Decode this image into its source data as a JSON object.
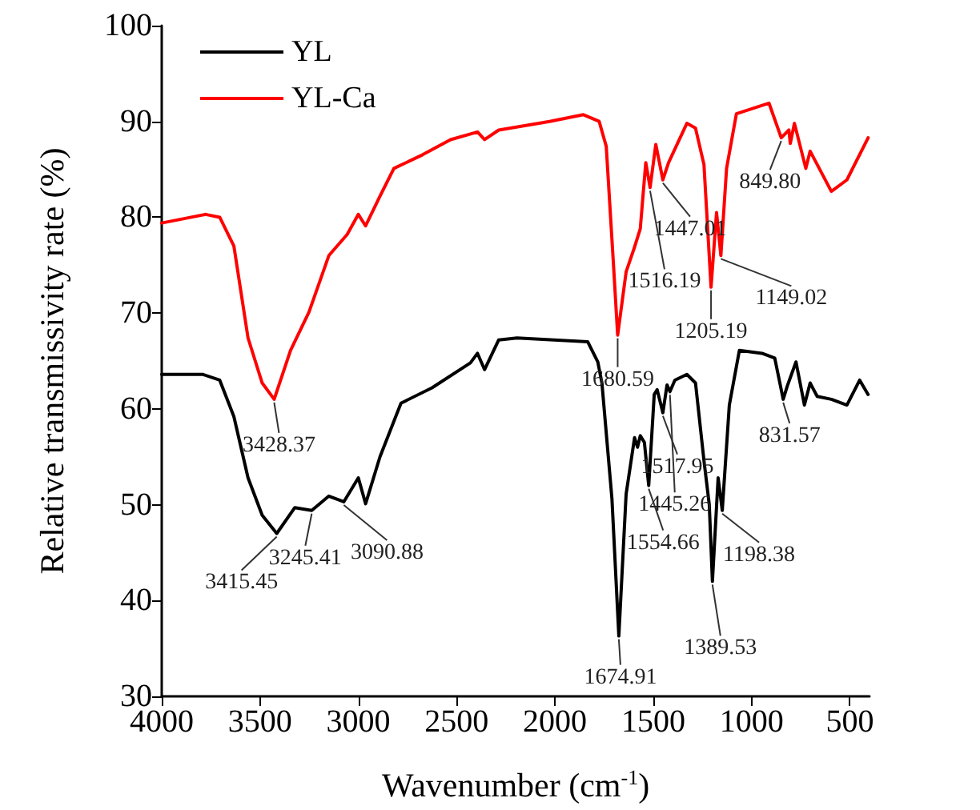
{
  "chart_data": {
    "type": "line",
    "xlabel": "Wavenumber (cm$^{-1}$)",
    "ylabel": "Relative transmissivity rate (%)",
    "xlim": [
      4000,
      400
    ],
    "xticks": [
      4000,
      3500,
      3000,
      2500,
      2000,
      1500,
      1000,
      500
    ],
    "ylim": [
      30,
      100
    ],
    "yticks": [
      30,
      40,
      50,
      60,
      70,
      80,
      90,
      100
    ],
    "grid": false,
    "legend": "top left",
    "marker": "none",
    "line_style": "solid",
    "series": [
      {
        "name": "YL",
        "color": "#000000",
        "x": [
          4000,
          3791,
          3705,
          3633,
          3561,
          3489,
          3415,
          3323,
          3237,
          3150,
          3074,
          3000,
          2963,
          2890,
          2783,
          2625,
          2430,
          2394,
          2358,
          2286,
          2193,
          1833,
          1782,
          1761,
          1710,
          1675,
          1638,
          1595,
          1580,
          1566,
          1545,
          1523,
          1495,
          1480,
          1451,
          1430,
          1415,
          1390,
          1329,
          1285,
          1242,
          1215,
          1199,
          1170,
          1149,
          1113,
          1062,
          947,
          882,
          839,
          818,
          774,
          731,
          702,
          666,
          594,
          515,
          450,
          407
        ],
        "values": [
          63.6,
          63.6,
          63.0,
          59.2,
          52.8,
          48.9,
          47.0,
          49.7,
          49.4,
          50.9,
          50.3,
          52.8,
          50.1,
          55.0,
          60.6,
          62.2,
          64.8,
          65.8,
          64.1,
          67.2,
          67.4,
          67.0,
          64.9,
          62.7,
          50.6,
          36.3,
          51.1,
          57.0,
          56.0,
          57.2,
          56.5,
          52.0,
          61.5,
          62.0,
          59.6,
          62.5,
          61.8,
          63.0,
          63.6,
          62.7,
          54.6,
          50.0,
          42.0,
          52.8,
          49.4,
          60.4,
          66.1,
          65.8,
          65.3,
          61.0,
          62.4,
          64.9,
          60.4,
          62.7,
          61.3,
          61.0,
          60.4,
          63.0,
          61.5
        ]
      },
      {
        "name": "YL-Ca",
        "color": "#ff0000",
        "x": [
          4000,
          3777,
          3705,
          3633,
          3561,
          3489,
          3428,
          3345,
          3251,
          3150,
          3057,
          3000,
          2963,
          2890,
          2819,
          2675,
          2531,
          2394,
          2358,
          2286,
          2027,
          1855,
          1775,
          1739,
          1703,
          1681,
          1638,
          1595,
          1566,
          1538,
          1516,
          1487,
          1451,
          1422,
          1329,
          1285,
          1242,
          1206,
          1178,
          1156,
          1127,
          1077,
          911,
          849,
          810,
          803,
          782,
          724,
          702,
          594,
          515,
          407
        ],
        "values": [
          79.4,
          80.3,
          80.0,
          77.0,
          67.4,
          62.7,
          61.0,
          66.1,
          70.1,
          76.0,
          78.2,
          80.3,
          79.1,
          82.2,
          85.1,
          86.5,
          88.1,
          88.9,
          88.1,
          89.1,
          90.0,
          90.7,
          90.0,
          87.4,
          75.3,
          67.7,
          74.3,
          76.9,
          78.8,
          85.7,
          83.1,
          87.6,
          83.9,
          85.7,
          89.8,
          89.3,
          85.5,
          72.7,
          80.5,
          76.0,
          85.1,
          90.8,
          91.9,
          88.3,
          89.1,
          87.7,
          89.8,
          85.1,
          86.9,
          82.7,
          83.9,
          88.3
        ]
      }
    ],
    "annotations": [
      {
        "text": "3428.37",
        "x": 3428,
        "y": 61.0
      },
      {
        "text": "1680.59",
        "x": 1681,
        "y": 67.7
      },
      {
        "text": "1516.19",
        "x": 1516,
        "y": 83.1
      },
      {
        "text": "1447.01",
        "x": 1451,
        "y": 83.9
      },
      {
        "text": "1205.19",
        "x": 1206,
        "y": 72.7
      },
      {
        "text": "1149.02",
        "x": 1156,
        "y": 76.0
      },
      {
        "text": "849.80",
        "x": 849,
        "y": 88.3
      },
      {
        "text": "3415.45",
        "x": 3415,
        "y": 47.0
      },
      {
        "text": "3245.41",
        "x": 3237,
        "y": 49.4
      },
      {
        "text": "3090.88",
        "x": 3074,
        "y": 50.3
      },
      {
        "text": "1674.91",
        "x": 1675,
        "y": 36.3
      },
      {
        "text": "1554.66",
        "x": 1523,
        "y": 52.0
      },
      {
        "text": "1517.95",
        "x": 1451,
        "y": 59.6
      },
      {
        "text": "1445.26",
        "x": 1415,
        "y": 61.8
      },
      {
        "text": "1389.53",
        "x": 1199,
        "y": 42.0
      },
      {
        "text": "1198.38",
        "x": 1149,
        "y": 49.4
      },
      {
        "text": "831.57",
        "x": 839,
        "y": 61.0
      }
    ]
  }
}
